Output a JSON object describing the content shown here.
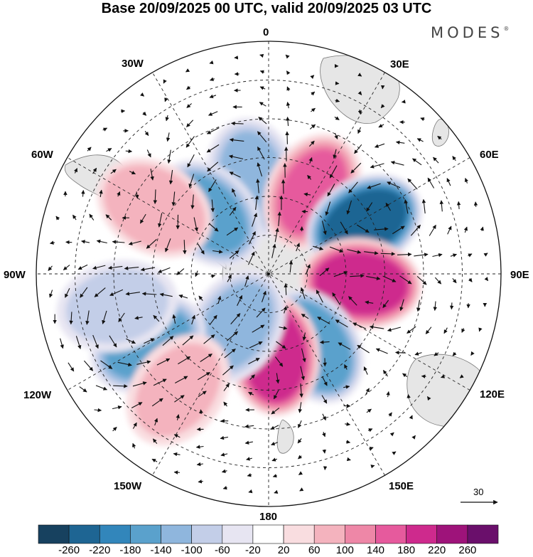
{
  "title": "Base 20/09/2025 00 UTC, valid 20/09/2025 03 UTC",
  "brand": {
    "name": "MODES",
    "mark": "®"
  },
  "longitude_labels": {
    "lon_0": "0",
    "lon_30e": "30E",
    "lon_60e": "60E",
    "lon_90e": "90E",
    "lon_120e": "120E",
    "lon_150e": "150E",
    "lon_180": "180",
    "lon_150w": "150W",
    "lon_120w": "120W",
    "lon_90w": "90W",
    "lon_60w": "60W",
    "lon_30w": "30W"
  },
  "reference_vector": {
    "label": "30",
    "value": 30
  },
  "colorbar": {
    "colors": [
      "#17415f",
      "#1e6593",
      "#3286bb",
      "#5aa1cc",
      "#8fb6dd",
      "#c3cee8",
      "#e7e5f2",
      "#ffffff",
      "#f9dde0",
      "#f4b3be",
      "#ee87a7",
      "#e65a9d",
      "#ce2a8d",
      "#9e137a",
      "#6a0f6b"
    ],
    "ticks": [
      "-260",
      "-220",
      "-180",
      "-140",
      "-100",
      "-60",
      "-20",
      "20",
      "60",
      "100",
      "140",
      "180",
      "220",
      "260"
    ]
  },
  "anomaly_centers": [
    {
      "sign": "negative",
      "lon": 350,
      "colat": 25,
      "value": -120
    },
    {
      "sign": "negative",
      "lon": 315,
      "colat": 22,
      "value": -150
    },
    {
      "sign": "positive",
      "lon": 28,
      "colat": 24,
      "value": 150
    },
    {
      "sign": "negative",
      "lon": 62,
      "colat": 28,
      "value": -250
    },
    {
      "sign": "positive",
      "lon": 96,
      "colat": 24,
      "value": 210
    },
    {
      "sign": "negative",
      "lon": 148,
      "colat": 22,
      "value": -170
    },
    {
      "sign": "positive",
      "lon": 176,
      "colat": 21,
      "value": 210
    },
    {
      "sign": "negative",
      "lon": 212,
      "colat": 16,
      "value": -120
    },
    {
      "sign": "negative",
      "lon": 240,
      "colat": 36,
      "value": -140
    },
    {
      "sign": "positive",
      "lon": 300,
      "colat": 34,
      "value": 90
    },
    {
      "sign": "negative",
      "lon": 258,
      "colat": 40,
      "value": -60
    },
    {
      "sign": "positive",
      "lon": 218,
      "colat": 38,
      "value": 80
    }
  ]
}
